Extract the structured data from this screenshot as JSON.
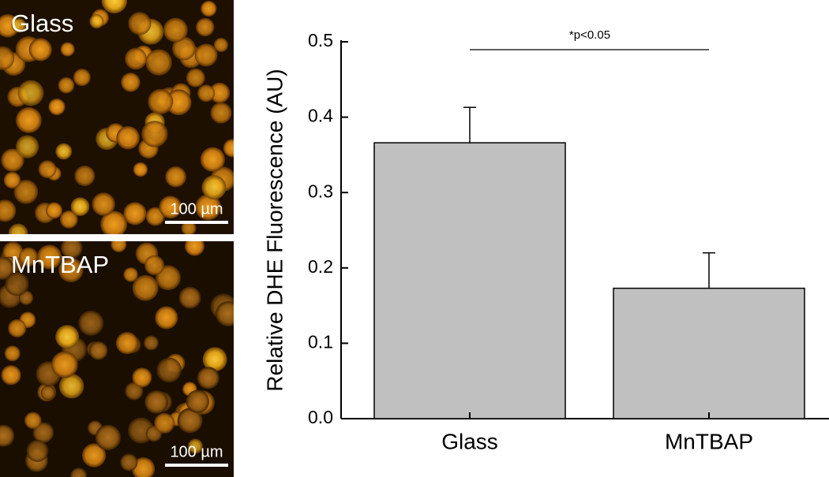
{
  "panels": [
    {
      "label": "Glass",
      "scale_bar": "100 µm"
    },
    {
      "label": "MnTBAP",
      "scale_bar": "100 µm"
    }
  ],
  "chart_data": {
    "type": "bar",
    "ylabel": "Relative DHE Fluorescence (AU)",
    "categories": [
      "Glass",
      "MnTBAP"
    ],
    "values": [
      0.366,
      0.173
    ],
    "errors": [
      0.047,
      0.047
    ],
    "color": "#c0c0c0",
    "ylim": [
      0,
      0.5
    ],
    "yticks": [
      {
        "value": 0,
        "label": "0.0"
      },
      0.1,
      0.2,
      0.3,
      0.4,
      0.5
    ],
    "annotation": "*p<0.05"
  }
}
